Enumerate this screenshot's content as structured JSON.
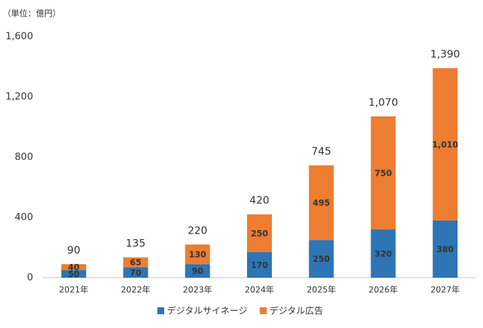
{
  "chart_data": {
    "type": "stacked_bar",
    "unit_label": "（単位：億円）",
    "categories": [
      "2021年",
      "2022年",
      "2023年",
      "2024年",
      "2025年",
      "2026年",
      "2027年"
    ],
    "series": [
      {
        "name": "デジタルサイネージ",
        "color": "#2e75b6",
        "values": [
          50,
          70,
          90,
          170,
          250,
          320,
          380
        ]
      },
      {
        "name": "デジタル広告",
        "color": "#ed7d31",
        "values": [
          40,
          65,
          130,
          250,
          495,
          750,
          1010
        ],
        "value_labels": [
          "40",
          "65",
          "130",
          "250",
          "495",
          "750",
          "1,010"
        ]
      }
    ],
    "totals": [
      90,
      135,
      220,
      420,
      745,
      1070,
      1390
    ],
    "total_labels": [
      "90",
      "135",
      "220",
      "420",
      "745",
      "1,070",
      "1,390"
    ],
    "ylim": [
      0,
      1600
    ],
    "yticks": [
      0,
      400,
      800,
      {
        "value": 1200,
        "label": "1,200"
      },
      {
        "value": 1600,
        "label": "1,600"
      }
    ],
    "grid": false,
    "legend": "bottom"
  }
}
